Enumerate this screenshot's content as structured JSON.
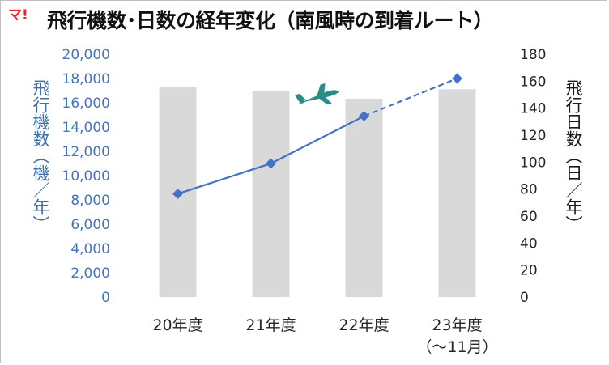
{
  "badge": "マ!",
  "chart_data": {
    "type": "bar",
    "title": "飛行機数･日数の経年変化（南風時の到着ルート）",
    "categories": [
      "20年度",
      "21年度",
      "22年度",
      "23年度（～11月）"
    ],
    "category_labels": [
      [
        "20年度"
      ],
      [
        "21年度"
      ],
      [
        "22年度"
      ],
      [
        "23年度",
        "（～11月）"
      ]
    ],
    "ylabel_left": "飛行機数（機／年）",
    "ylabel_right": "飛行日数（日／年）",
    "ylim_left": [
      0,
      20000
    ],
    "ylim_right": [
      0,
      180
    ],
    "yticks_left": [
      "0",
      "2,000",
      "4,000",
      "6,000",
      "8,000",
      "10,000",
      "12,000",
      "14,000",
      "16,000",
      "18,000",
      "20,000"
    ],
    "yticks_right": [
      "0",
      "20",
      "40",
      "60",
      "80",
      "100",
      "120",
      "140",
      "160",
      "180"
    ],
    "series": [
      {
        "type": "bar",
        "axis": "right",
        "color": "#d9d9d9",
        "values": [
          156,
          153,
          147,
          154
        ]
      },
      {
        "type": "line",
        "axis": "left",
        "color": "#4472c4",
        "values": [
          8500,
          11000,
          14900,
          18000
        ],
        "dashed_last_segment": true
      }
    ],
    "grid": false,
    "legend": "none"
  }
}
